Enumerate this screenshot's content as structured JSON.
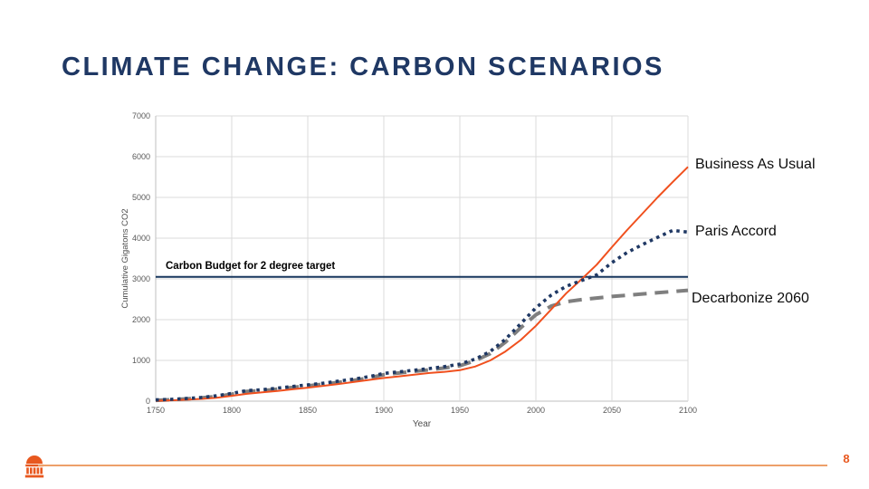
{
  "slide": {
    "title": "CLIMATE CHANGE: CARBON SCENARIOS"
  },
  "colors": {
    "title_navy": "#1F3864",
    "accent_orange": "#E8581F",
    "footer_rule_orange": "#EDA06A",
    "grid_gray": "#DBDBDB",
    "axis_gray": "#BFBFBF",
    "tick_text_gray": "#595959"
  },
  "chart_data": {
    "type": "line",
    "title": "",
    "xlabel": "Year",
    "ylabel": "Cumulative Gigatons CO2",
    "xlim": [
      1750,
      2100
    ],
    "ylim": [
      0,
      7000
    ],
    "x_ticks": [
      1750,
      1800,
      1850,
      1900,
      1950,
      2000,
      2050,
      2100
    ],
    "y_ticks": [
      0,
      1000,
      2000,
      3000,
      4000,
      5000,
      6000,
      7000
    ],
    "grid": true,
    "legend_position": "labels-right-of-lines",
    "x": [
      1750,
      1760,
      1770,
      1780,
      1790,
      1800,
      1810,
      1820,
      1830,
      1840,
      1850,
      1860,
      1870,
      1880,
      1890,
      1900,
      1910,
      1920,
      1930,
      1940,
      1950,
      1960,
      1970,
      1980,
      1990,
      2000,
      2010,
      2020,
      2030,
      2040,
      2050,
      2060,
      2070,
      2080,
      2090,
      2100
    ],
    "series": [
      {
        "name": "Business As Usual",
        "color": "#F0501E",
        "style": "solid",
        "values": [
          10,
          20,
          35,
          55,
          85,
          130,
          180,
          215,
          250,
          290,
          330,
          375,
          420,
          470,
          520,
          570,
          610,
          650,
          690,
          720,
          760,
          850,
          1000,
          1220,
          1500,
          1850,
          2250,
          2650,
          2990,
          3350,
          3780,
          4200,
          4600,
          5000,
          5380,
          5750
        ]
      },
      {
        "name": "Paris Accord",
        "color": "#1F3864",
        "style": "dotted",
        "values": [
          30,
          45,
          65,
          90,
          130,
          190,
          260,
          280,
          320,
          360,
          400,
          440,
          490,
          540,
          600,
          680,
          720,
          760,
          800,
          850,
          910,
          1030,
          1220,
          1520,
          1900,
          2290,
          2600,
          2820,
          2960,
          3100,
          3400,
          3650,
          3840,
          4020,
          4190,
          4150
        ]
      },
      {
        "name": "Decarbonize 2060",
        "color": "#7F7F7F",
        "style": "dashed",
        "values": [
          20,
          35,
          55,
          80,
          115,
          170,
          240,
          255,
          295,
          335,
          375,
          415,
          460,
          510,
          570,
          650,
          690,
          730,
          770,
          815,
          870,
          990,
          1170,
          1450,
          1800,
          2120,
          2330,
          2440,
          2490,
          2530,
          2570,
          2600,
          2630,
          2660,
          2690,
          2720
        ]
      }
    ],
    "annotation": {
      "label": "Carbon Budget for 2 degree target",
      "value": 3050,
      "color": "#17365D"
    }
  },
  "footer": {
    "logo": "rotunda-icon",
    "page_number": "8"
  }
}
